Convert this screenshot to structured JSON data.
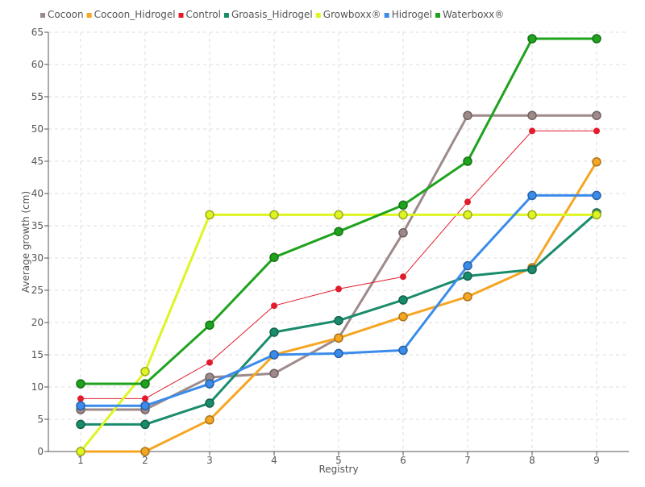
{
  "chart_data": {
    "type": "line",
    "title": "",
    "xlabel": "Registry",
    "ylabel": "Average growth (cm)",
    "x": [
      1,
      2,
      3,
      4,
      5,
      6,
      7,
      8,
      9
    ],
    "x_tick_labels": [
      "1",
      "2",
      "3",
      "4",
      "5",
      "6",
      "7",
      "8",
      "9"
    ],
    "ylim": [
      0,
      65
    ],
    "y_ticks": [
      0,
      5,
      10,
      15,
      20,
      25,
      30,
      35,
      40,
      45,
      50,
      55,
      60,
      65
    ],
    "y_tick_labels": [
      "0",
      "5",
      "10",
      "15",
      "20",
      "25",
      "30",
      "35",
      "40",
      "45",
      "50",
      "55",
      "60",
      "65"
    ],
    "grid": true,
    "legend_position": "top-left",
    "series": [
      {
        "name": "Cocoon",
        "color": "#9e8a8a",
        "marker": "circle",
        "values": [
          6.5,
          6.5,
          11.5,
          12.1,
          17.6,
          33.9,
          52.1,
          52.1,
          52.1
        ]
      },
      {
        "name": "Cocoon_Hidrogel",
        "color": "#f5a623",
        "marker": "circle",
        "values": [
          0.0,
          0.0,
          4.9,
          15.0,
          17.6,
          20.9,
          24.0,
          28.5,
          44.9
        ]
      },
      {
        "name": "Control",
        "color": "#e21b2b",
        "marker": "dot",
        "values": [
          8.2,
          8.2,
          13.8,
          22.6,
          25.2,
          27.1,
          38.7,
          49.7,
          49.7
        ]
      },
      {
        "name": "Groasis_Hidrogel",
        "color": "#1a8c6c",
        "marker": "circle",
        "values": [
          4.2,
          4.2,
          7.5,
          18.5,
          20.3,
          23.5,
          27.2,
          28.2,
          37.0
        ]
      },
      {
        "name": "Growboxx®",
        "color": "#ddf522",
        "marker": "circle",
        "values": [
          0.0,
          12.4,
          36.7,
          36.7,
          36.7,
          36.7,
          36.7,
          36.7,
          36.7
        ]
      },
      {
        "name": "Hidrogel",
        "color": "#3b8beb",
        "marker": "circle",
        "values": [
          7.1,
          7.1,
          10.5,
          15.0,
          15.2,
          15.7,
          28.8,
          39.7,
          39.7
        ]
      },
      {
        "name": "Waterboxx®",
        "color": "#1fa31f",
        "marker": "circle",
        "values": [
          10.5,
          10.5,
          19.6,
          30.1,
          34.1,
          38.2,
          45.0,
          64.0,
          64.0
        ]
      }
    ]
  }
}
